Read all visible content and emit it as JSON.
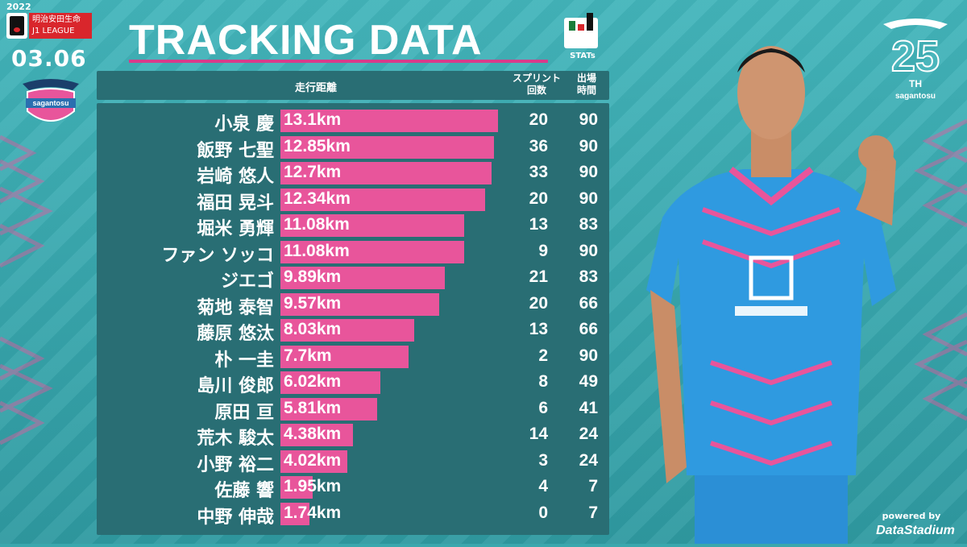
{
  "header": {
    "year": "2022",
    "league_badge_line1": "明治安田生命",
    "league_badge_line2": "J1 LEAGUE",
    "date": "03.06",
    "club_name": "sagantosu",
    "title": "TRACKING DATA",
    "stats_logo_text": "STATs",
    "anniversary": "25",
    "anniversary_suffix": "TH",
    "anniversary_club": "sagantosu"
  },
  "columns": {
    "distance": "走行距離",
    "sprint_line1": "スプリント",
    "sprint_line2": "回数",
    "minutes_line1": "出場",
    "minutes_line2": "時間"
  },
  "footer": {
    "powered_by": "powered by",
    "provider": "DataStadium"
  },
  "colors": {
    "background": "#3aa7ad",
    "panel": "#296e74",
    "bar": "#e8559b",
    "accent_pink": "#d93b8b"
  },
  "chart_data": {
    "type": "bar",
    "orientation": "horizontal",
    "title": "TRACKING DATA",
    "xlabel": "走行距離",
    "ylabel": "",
    "xlim": [
      0,
      13.1
    ],
    "categories": [
      "小泉 慶",
      "飯野 七聖",
      "岩崎 悠人",
      "福田 晃斗",
      "堀米 勇輝",
      "ファン ソッコ",
      "ジエゴ",
      "菊地 泰智",
      "藤原 悠汰",
      "朴 一圭",
      "島川 俊郎",
      "原田 亘",
      "荒木 駿太",
      "小野 裕二",
      "佐藤 響",
      "中野 伸哉"
    ],
    "distance_labels": [
      "13.1km",
      "12.85km",
      "12.7km",
      "12.34km",
      "11.08km",
      "11.08km",
      "9.89km",
      "9.57km",
      "8.03km",
      "7.7km",
      "6.02km",
      "5.81km",
      "4.38km",
      "4.02km",
      "1.95km",
      "1.74km"
    ],
    "series": [
      {
        "values": [
          13.1,
          12.85,
          12.7,
          12.34,
          11.08,
          11.08,
          9.89,
          9.57,
          8.03,
          7.7,
          6.02,
          5.81,
          4.38,
          4.02,
          1.95,
          1.74
        ]
      }
    ],
    "sprints": [
      20,
      36,
      33,
      20,
      13,
      9,
      21,
      20,
      13,
      2,
      8,
      6,
      14,
      3,
      4,
      0
    ],
    "minutes": [
      90,
      90,
      90,
      90,
      83,
      90,
      83,
      66,
      66,
      90,
      49,
      41,
      24,
      24,
      7,
      7
    ]
  }
}
